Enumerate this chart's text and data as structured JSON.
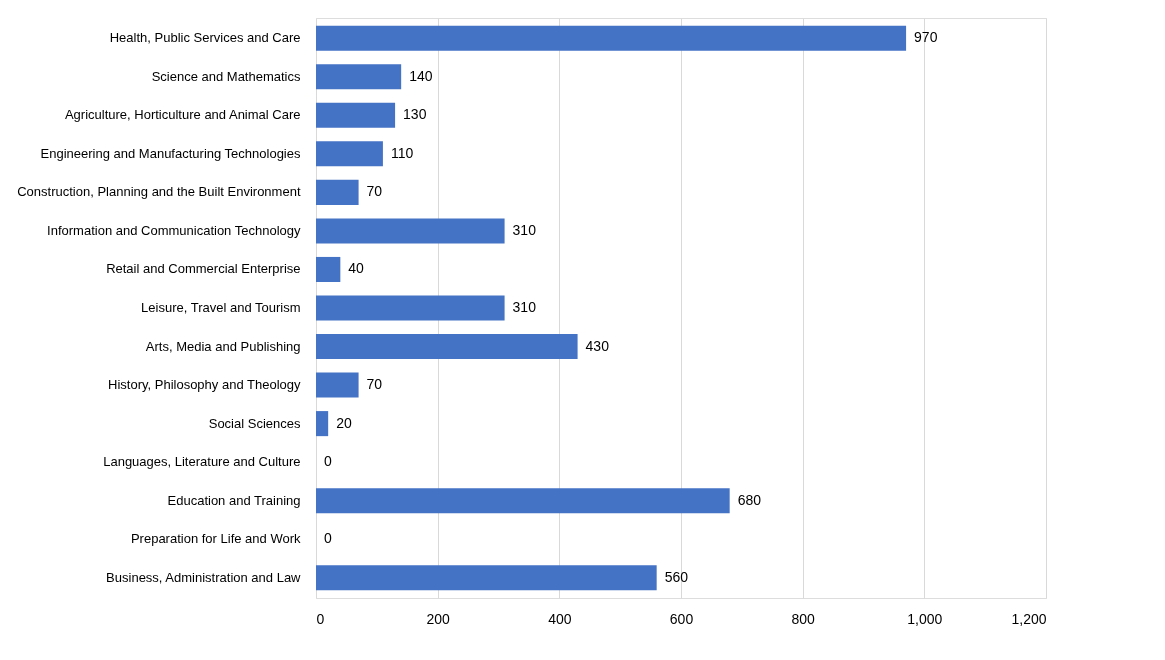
{
  "chart_data": {
    "type": "bar",
    "orientation": "horizontal",
    "categories": [
      "Health, Public Services and Care",
      "Science and Mathematics",
      "Agriculture, Horticulture and Animal Care",
      "Engineering and Manufacturing Technologies",
      "Construction, Planning and the Built Environment",
      "Information and Communication Technology",
      "Retail and Commercial Enterprise",
      "Leisure, Travel and Tourism",
      "Arts, Media and Publishing",
      "History, Philosophy and Theology",
      "Social Sciences",
      "Languages, Literature and Culture",
      "Education and Training",
      "Preparation for Life and Work",
      "Business, Administration and Law"
    ],
    "values": [
      970,
      140,
      130,
      110,
      70,
      310,
      40,
      310,
      430,
      70,
      20,
      0,
      680,
      0,
      560
    ],
    "color": "#4472c4",
    "xlim": [
      0,
      1200
    ],
    "xticks": [
      0,
      200,
      400,
      600,
      800,
      {
        "value": 1000,
        "label": "1,000"
      },
      {
        "value": 1200,
        "label": "1,200"
      }
    ],
    "grid": "x",
    "data_labels": true
  }
}
